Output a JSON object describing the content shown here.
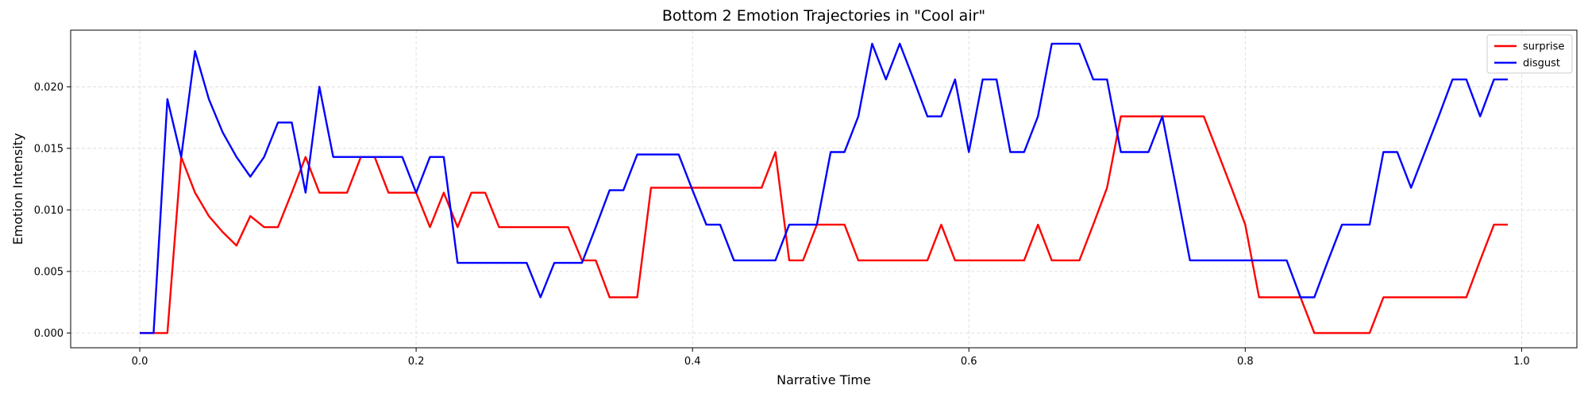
{
  "chart_data": {
    "type": "line",
    "title": "Bottom 2 Emotion Trajectories in \"Cool air\"",
    "xlabel": "Narrative Time",
    "ylabel": "Emotion Intensity",
    "xlim": [
      -0.05,
      1.04
    ],
    "ylim": [
      -0.0012,
      0.0246
    ],
    "xticks": [
      0.0,
      0.2,
      0.4,
      0.6,
      0.8,
      1.0
    ],
    "xtick_labels": [
      "0.0",
      "0.2",
      "0.4",
      "0.6",
      "0.8",
      "1.0"
    ],
    "yticks": [
      0.0,
      0.005,
      0.01,
      0.015,
      0.02
    ],
    "ytick_labels": [
      "0.000",
      "0.005",
      "0.010",
      "0.015",
      "0.020"
    ],
    "grid": true,
    "legend_position": "top-right",
    "x": [
      0.0,
      0.01,
      0.02,
      0.03,
      0.04,
      0.05,
      0.06,
      0.07,
      0.08,
      0.09,
      0.1,
      0.11,
      0.12,
      0.13,
      0.14,
      0.15,
      0.16,
      0.17,
      0.18,
      0.19,
      0.2,
      0.21,
      0.22,
      0.23,
      0.24,
      0.25,
      0.26,
      0.27,
      0.28,
      0.29,
      0.3,
      0.31,
      0.32,
      0.33,
      0.34,
      0.35,
      0.36,
      0.37,
      0.38,
      0.39,
      0.4,
      0.41,
      0.42,
      0.43,
      0.44,
      0.45,
      0.46,
      0.47,
      0.48,
      0.49,
      0.5,
      0.51,
      0.52,
      0.53,
      0.54,
      0.55,
      0.56,
      0.57,
      0.58,
      0.59,
      0.6,
      0.61,
      0.62,
      0.63,
      0.64,
      0.65,
      0.66,
      0.67,
      0.68,
      0.69,
      0.7,
      0.71,
      0.72,
      0.73,
      0.74,
      0.75,
      0.76,
      0.77,
      0.78,
      0.79,
      0.8,
      0.81,
      0.82,
      0.83,
      0.84,
      0.85,
      0.86,
      0.87,
      0.88,
      0.89,
      0.9,
      0.91,
      0.92,
      0.93,
      0.94,
      0.95,
      0.96,
      0.97,
      0.98,
      0.99
    ],
    "series": [
      {
        "name": "surprise",
        "color": "#ff0000",
        "values": [
          0.0,
          0.0,
          0.0,
          0.0143,
          0.0114,
          0.0095,
          0.0082,
          0.0071,
          0.0095,
          0.0086,
          0.0086,
          0.0114,
          0.0143,
          0.0114,
          0.0114,
          0.0114,
          0.0143,
          0.0143,
          0.0114,
          0.0114,
          0.0114,
          0.0086,
          0.0114,
          0.0086,
          0.0114,
          0.0114,
          0.0086,
          0.0086,
          0.0086,
          0.0086,
          0.0086,
          0.0086,
          0.0059,
          0.0059,
          0.0029,
          0.0029,
          0.0029,
          0.0118,
          0.0118,
          0.0118,
          0.0118,
          0.0118,
          0.0118,
          0.0118,
          0.0118,
          0.0118,
          0.0147,
          0.0059,
          0.0059,
          0.0088,
          0.0088,
          0.0088,
          0.0059,
          0.0059,
          0.0059,
          0.0059,
          0.0059,
          0.0059,
          0.0088,
          0.0059,
          0.0059,
          0.0059,
          0.0059,
          0.0059,
          0.0059,
          0.0088,
          0.0059,
          0.0059,
          0.0059,
          0.0088,
          0.0118,
          0.0176,
          0.0176,
          0.0176,
          0.0176,
          0.0176,
          0.0176,
          0.0176,
          0.0147,
          0.0118,
          0.0088,
          0.0029,
          0.0029,
          0.0029,
          0.0029,
          0.0,
          0.0,
          0.0,
          0.0,
          0.0,
          0.0029,
          0.0029,
          0.0029,
          0.0029,
          0.0029,
          0.0029,
          0.0029,
          0.0059,
          0.0088,
          0.0088
        ]
      },
      {
        "name": "disgust",
        "color": "#0000ff",
        "values": [
          0.0,
          0.0,
          0.019,
          0.0143,
          0.0229,
          0.019,
          0.0163,
          0.0143,
          0.0127,
          0.0143,
          0.0171,
          0.0171,
          0.0114,
          0.02,
          0.0143,
          0.0143,
          0.0143,
          0.0143,
          0.0143,
          0.0143,
          0.0114,
          0.0143,
          0.0143,
          0.0057,
          0.0057,
          0.0057,
          0.0057,
          0.0057,
          0.0057,
          0.0029,
          0.0057,
          0.0057,
          0.0057,
          0.0086,
          0.0116,
          0.0116,
          0.0145,
          0.0145,
          0.0145,
          0.0145,
          0.0116,
          0.0088,
          0.0088,
          0.0059,
          0.0059,
          0.0059,
          0.0059,
          0.0088,
          0.0088,
          0.0088,
          0.0147,
          0.0147,
          0.0176,
          0.0235,
          0.0206,
          0.0235,
          0.0206,
          0.0176,
          0.0176,
          0.0206,
          0.0147,
          0.0206,
          0.0206,
          0.0147,
          0.0147,
          0.0176,
          0.0235,
          0.0235,
          0.0235,
          0.0206,
          0.0206,
          0.0147,
          0.0147,
          0.0147,
          0.0176,
          0.0118,
          0.0059,
          0.0059,
          0.0059,
          0.0059,
          0.0059,
          0.0059,
          0.0059,
          0.0059,
          0.0029,
          0.0029,
          0.0059,
          0.0088,
          0.0088,
          0.0088,
          0.0147,
          0.0147,
          0.0118,
          0.0147,
          0.0176,
          0.0206,
          0.0206,
          0.0176,
          0.0206,
          0.0206
        ]
      }
    ]
  }
}
